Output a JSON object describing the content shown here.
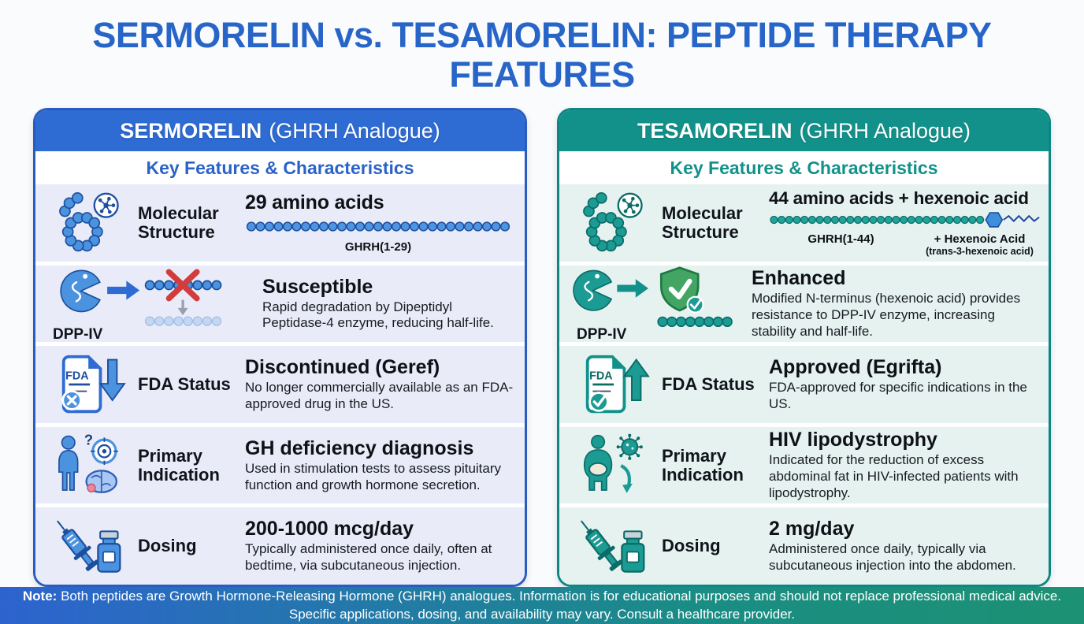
{
  "title": "SERMORELIN vs. TESAMORELIN: PEPTIDE THERAPY FEATURES",
  "colors": {
    "title_blue": "#2765c8",
    "sermorelin_accent": "#2e6bd3",
    "tesamorelin_accent": "#12918b",
    "note_gradient_left": "#2d63cf",
    "note_gradient_right": "#1d9173",
    "error_red": "#d23c3c",
    "shield_green": "#43a564"
  },
  "panels": [
    {
      "name": "SERMORELIN",
      "type_suffix": "(GHRH Analogue)",
      "subtitle": "Key Features & Characteristics",
      "rows": [
        {
          "label": "Molecular Structure",
          "value": "29 amino acids",
          "chain_caption": "GHRH(1-29)"
        },
        {
          "icon_label": "DPP-IV",
          "value": "Susceptible",
          "desc": "Rapid degradation by Dipeptidyl Peptidase-4 enzyme, reducing half-life."
        },
        {
          "label": "FDA Status",
          "icon_text": "FDA",
          "value": "Discontinued (Geref)",
          "desc": "No longer commercially available as an FDA-approved drug in the US."
        },
        {
          "label": "Primary Indication",
          "icon_text": "?",
          "value": "GH deficiency diagnosis",
          "desc": "Used in stimulation tests to assess pituitary function and growth hormone secretion."
        },
        {
          "label": "Dosing",
          "value": "200-1000 mcg/day",
          "desc": "Typically administered once daily, often at bedtime, via subcutaneous injection."
        }
      ]
    },
    {
      "name": "TESAMORELIN",
      "type_suffix": "(GHRH Analogue)",
      "subtitle": "Key Features & Characteristics",
      "rows": [
        {
          "label": "Molecular Structure",
          "value": "44 amino acids + hexenoic acid",
          "chain_caption": "GHRH(1-44)",
          "chain_caption2": "+ Hexenoic Acid",
          "chain_caption2_sub": "(trans-3-hexenoic acid)"
        },
        {
          "icon_label": "DPP-IV",
          "value": "Enhanced",
          "desc": "Modified N-terminus (hexenoic acid) provides resistance to DPP-IV enzyme, increasing stability and half-life."
        },
        {
          "label": "FDA Status",
          "icon_text": "FDA",
          "value": "Approved (Egrifta)",
          "desc": "FDA-approved for specific indications in the US."
        },
        {
          "label": "Primary Indication",
          "value": "HIV lipodystrophy",
          "desc": "Indicated for the reduction of excess abdominal fat in HIV-infected patients with lipodystrophy."
        },
        {
          "label": "Dosing",
          "value": "2 mg/day",
          "desc": "Administered once daily, typically via subcutaneous injection into the abdomen."
        }
      ]
    }
  ],
  "note": {
    "prefix": "Note:",
    "line1": "Both peptides are Growth Hormone-Releasing Hormone (GHRH) analogues. Information is for educational purposes and should not replace professional medical advice.",
    "line2": "Specific applications, dosing, and availability may vary. Consult a healthcare provider."
  }
}
